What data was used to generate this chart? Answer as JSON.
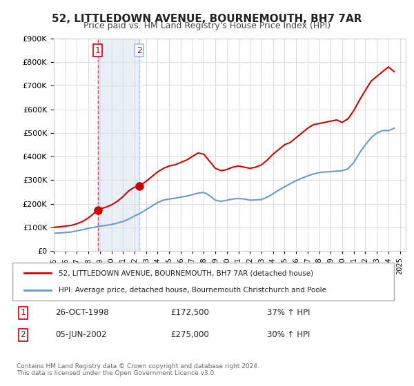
{
  "title": "52, LITTLEDOWN AVENUE, BOURNEMOUTH, BH7 7AR",
  "subtitle": "Price paid vs. HM Land Registry's House Price Index (HPI)",
  "legend_line1": "52, LITTLEDOWN AVENUE, BOURNEMOUTH, BH7 7AR (detached house)",
  "legend_line2": "HPI: Average price, detached house, Bournemouth Christchurch and Poole",
  "footer": "Contains HM Land Registry data © Crown copyright and database right 2024.\nThis data is licensed under the Open Government Licence v3.0.",
  "transaction1_label": "1",
  "transaction1_date": "26-OCT-1998",
  "transaction1_price": "£172,500",
  "transaction1_hpi": "37% ↑ HPI",
  "transaction2_label": "2",
  "transaction2_date": "05-JUN-2002",
  "transaction2_price": "£275,000",
  "transaction2_hpi": "30% ↑ HPI",
  "red_color": "#cc0000",
  "blue_color": "#6699cc",
  "marker1_x": 1998.8,
  "marker1_y": 172500,
  "marker2_x": 2002.4,
  "marker2_y": 275000,
  "ylim": [
    0,
    900000
  ],
  "xlim": [
    1995,
    2025.5
  ],
  "red_x": [
    1995.0,
    1995.5,
    1996.0,
    1996.5,
    1997.0,
    1997.5,
    1998.0,
    1998.5,
    1998.8,
    1999.0,
    1999.5,
    2000.0,
    2000.5,
    2001.0,
    2001.5,
    2002.0,
    2002.4,
    2002.5,
    2003.0,
    2003.5,
    2004.0,
    2004.5,
    2005.0,
    2005.5,
    2006.0,
    2006.5,
    2007.0,
    2007.5,
    2008.0,
    2008.5,
    2009.0,
    2009.5,
    2010.0,
    2010.5,
    2011.0,
    2011.5,
    2012.0,
    2012.5,
    2013.0,
    2013.5,
    2014.0,
    2014.5,
    2015.0,
    2015.5,
    2016.0,
    2016.5,
    2017.0,
    2017.5,
    2018.0,
    2018.5,
    2019.0,
    2019.5,
    2020.0,
    2020.5,
    2021.0,
    2021.5,
    2022.0,
    2022.5,
    2023.0,
    2023.5,
    2024.0,
    2024.5
  ],
  "red_y": [
    100000,
    102000,
    105000,
    108000,
    115000,
    125000,
    140000,
    160000,
    172500,
    178000,
    185000,
    195000,
    210000,
    230000,
    255000,
    270000,
    275000,
    278000,
    295000,
    315000,
    335000,
    350000,
    360000,
    365000,
    375000,
    385000,
    400000,
    415000,
    410000,
    380000,
    350000,
    340000,
    345000,
    355000,
    360000,
    355000,
    350000,
    355000,
    365000,
    385000,
    410000,
    430000,
    450000,
    460000,
    480000,
    500000,
    520000,
    535000,
    540000,
    545000,
    550000,
    555000,
    545000,
    560000,
    595000,
    640000,
    680000,
    720000,
    740000,
    760000,
    780000,
    760000
  ],
  "blue_x": [
    1995.0,
    1995.5,
    1996.0,
    1996.5,
    1997.0,
    1997.5,
    1998.0,
    1998.5,
    1999.0,
    1999.5,
    2000.0,
    2000.5,
    2001.0,
    2001.5,
    2002.0,
    2002.5,
    2003.0,
    2003.5,
    2004.0,
    2004.5,
    2005.0,
    2005.5,
    2006.0,
    2006.5,
    2007.0,
    2007.5,
    2008.0,
    2008.5,
    2009.0,
    2009.5,
    2010.0,
    2010.5,
    2011.0,
    2011.5,
    2012.0,
    2012.5,
    2013.0,
    2013.5,
    2014.0,
    2014.5,
    2015.0,
    2015.5,
    2016.0,
    2016.5,
    2017.0,
    2017.5,
    2018.0,
    2018.5,
    2019.0,
    2019.5,
    2020.0,
    2020.5,
    2021.0,
    2021.5,
    2022.0,
    2022.5,
    2023.0,
    2023.5,
    2024.0,
    2024.5
  ],
  "blue_y": [
    75000,
    76000,
    78000,
    80000,
    85000,
    90000,
    96000,
    100000,
    105000,
    108000,
    112000,
    118000,
    125000,
    135000,
    148000,
    160000,
    175000,
    190000,
    205000,
    215000,
    220000,
    223000,
    228000,
    232000,
    238000,
    245000,
    248000,
    235000,
    215000,
    210000,
    215000,
    220000,
    222000,
    220000,
    215000,
    216000,
    218000,
    228000,
    242000,
    258000,
    272000,
    285000,
    298000,
    308000,
    318000,
    326000,
    332000,
    335000,
    336000,
    338000,
    340000,
    348000,
    375000,
    415000,
    450000,
    480000,
    500000,
    510000,
    510000,
    520000
  ]
}
